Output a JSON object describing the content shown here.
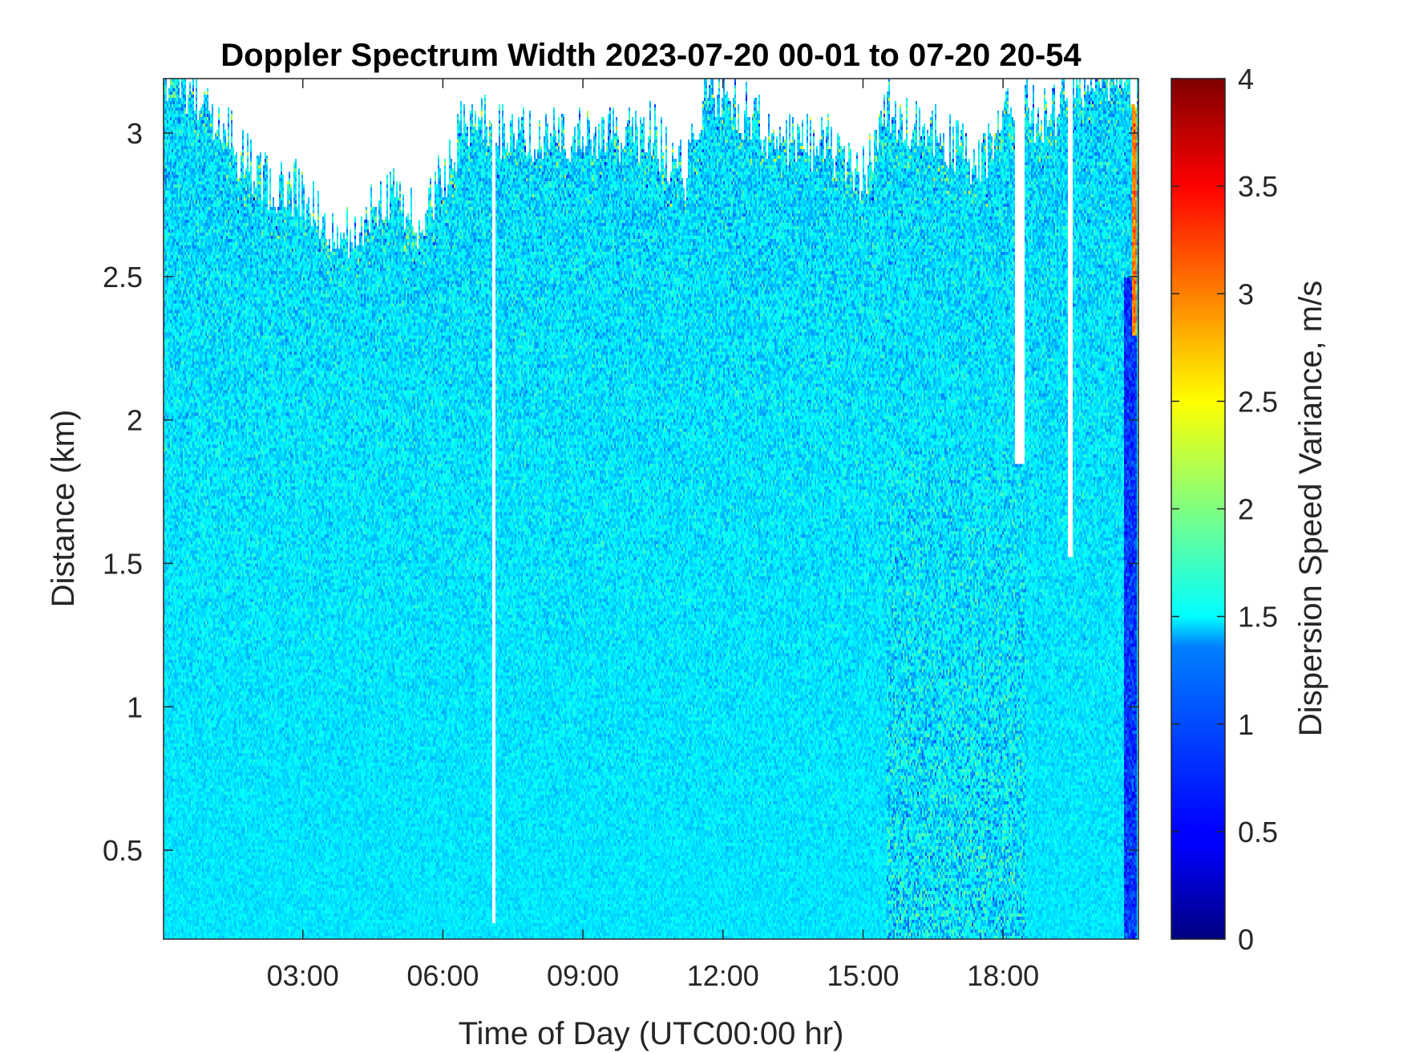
{
  "chart_data": {
    "type": "heatmap",
    "title": "Doppler Spectrum Width 2023-07-20 00-01 to 07-20 20-54",
    "xlabel": "Time of Day (UTC00:00 hr)",
    "ylabel": "Distance (km)",
    "colorbar_label": "Dispersion Speed Variance, m/s",
    "colormap": "jet",
    "x_range": [
      "00:01",
      "20:54"
    ],
    "x_ticks": [
      {
        "label": "03:00",
        "hours": 3
      },
      {
        "label": "06:00",
        "hours": 6
      },
      {
        "label": "09:00",
        "hours": 9
      },
      {
        "label": "12:00",
        "hours": 12
      },
      {
        "label": "15:00",
        "hours": 15
      },
      {
        "label": "18:00",
        "hours": 18
      }
    ],
    "ylim": [
      0.19,
      3.19
    ],
    "y_ticks": [
      {
        "label": "0.5",
        "value": 0.5
      },
      {
        "label": "1",
        "value": 1
      },
      {
        "label": "1.5",
        "value": 1.5
      },
      {
        "label": "2",
        "value": 2
      },
      {
        "label": "2.5",
        "value": 2.5
      },
      {
        "label": "3",
        "value": 3
      }
    ],
    "clim": [
      0,
      4
    ],
    "colorbar_ticks": [
      {
        "label": "0",
        "value": 0
      },
      {
        "label": "0.5",
        "value": 0.5
      },
      {
        "label": "1",
        "value": 1
      },
      {
        "label": "1.5",
        "value": 1.5
      },
      {
        "label": "2",
        "value": 2
      },
      {
        "label": "2.5",
        "value": 2.5
      },
      {
        "label": "3",
        "value": 3
      },
      {
        "label": "3.5",
        "value": 3.5
      },
      {
        "label": "4",
        "value": 4
      }
    ],
    "typical_value": 1.4,
    "echo_top_km": [
      {
        "hours": 0.02,
        "top": 3.19
      },
      {
        "hours": 1.0,
        "top": 3.1
      },
      {
        "hours": 2.0,
        "top": 2.85
      },
      {
        "hours": 3.0,
        "top": 2.8
      },
      {
        "hours": 3.8,
        "top": 2.6
      },
      {
        "hours": 4.5,
        "top": 2.75
      },
      {
        "hours": 5.0,
        "top": 2.8
      },
      {
        "hours": 5.5,
        "top": 2.7
      },
      {
        "hours": 6.0,
        "top": 2.85
      },
      {
        "hours": 6.5,
        "top": 3.05
      },
      {
        "hours": 7.5,
        "top": 3.0
      },
      {
        "hours": 9.0,
        "top": 3.0
      },
      {
        "hours": 10.5,
        "top": 3.0
      },
      {
        "hours": 11.2,
        "top": 2.85
      },
      {
        "hours": 11.7,
        "top": 3.19
      },
      {
        "hours": 12.3,
        "top": 3.1
      },
      {
        "hours": 13.0,
        "top": 3.0
      },
      {
        "hours": 14.5,
        "top": 2.95
      },
      {
        "hours": 15.0,
        "top": 2.85
      },
      {
        "hours": 15.6,
        "top": 3.1
      },
      {
        "hours": 16.5,
        "top": 3.0
      },
      {
        "hours": 17.5,
        "top": 2.9
      },
      {
        "hours": 18.2,
        "top": 3.1
      },
      {
        "hours": 19.0,
        "top": 3.05
      },
      {
        "hours": 19.5,
        "top": 3.19
      },
      {
        "hours": 20.9,
        "top": 3.19
      }
    ],
    "data_gaps": [
      {
        "start_hours": 7.05,
        "end_hours": 7.12,
        "from_km": 0.25
      },
      {
        "start_hours": 18.25,
        "end_hours": 18.45,
        "from_km": 1.85
      },
      {
        "start_hours": 19.4,
        "end_hours": 19.5,
        "from_km": 1.52
      }
    ],
    "regions": [
      {
        "name": "noisy-band",
        "start_hours": 15.5,
        "end_hours": 18.5,
        "min_km": 0.19,
        "max_km": 1.9,
        "value_spread": 0.9
      },
      {
        "name": "low-edge",
        "start_hours": 20.6,
        "end_hours": 20.85,
        "min_km": 0.19,
        "max_km": 2.5,
        "value": 0.7
      },
      {
        "name": "high-edge",
        "start_hours": 20.75,
        "end_hours": 20.85,
        "min_km": 2.3,
        "max_km": 3.19,
        "value": 3.0
      }
    ]
  }
}
